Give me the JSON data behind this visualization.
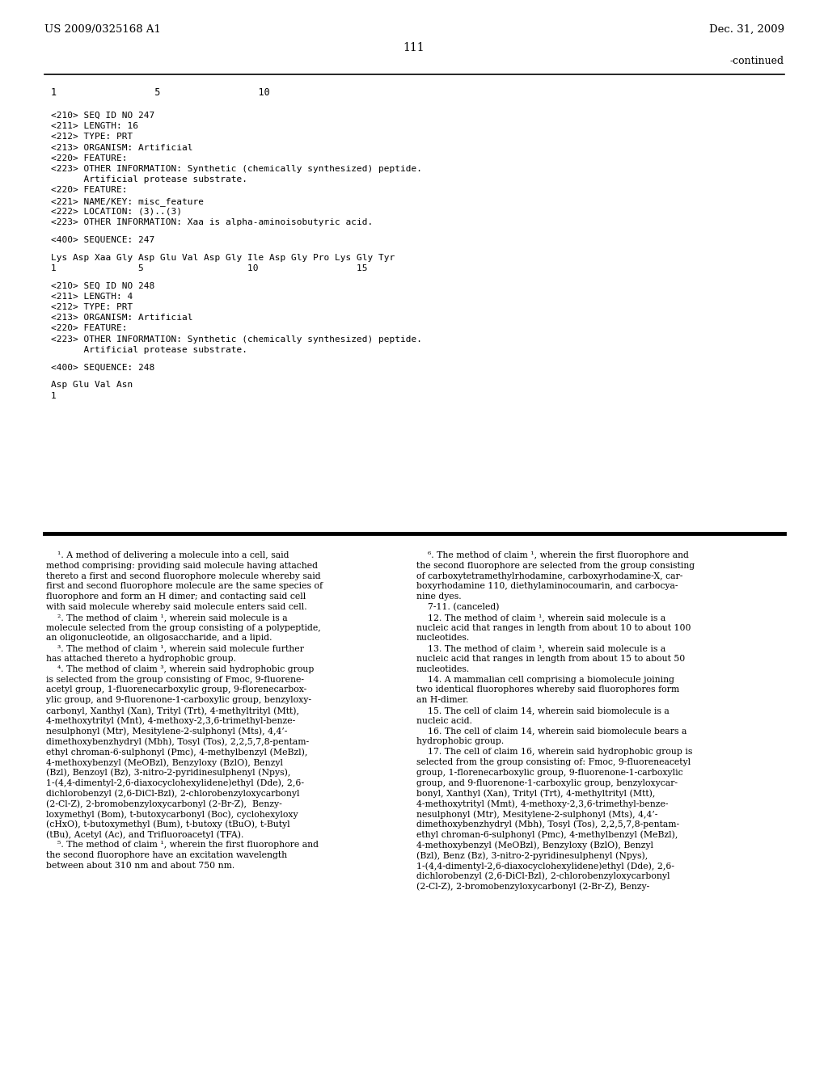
{
  "page_number": "111",
  "header_left": "US 2009/0325168 A1",
  "header_right": "Dec. 31, 2009",
  "continued_label": "-continued",
  "bg_color": "#ffffff",
  "text_color": "#000000",
  "sequence_ruler": "1                 5                 10",
  "seq247_lines": [
    "<210> SEQ ID NO 247",
    "<211> LENGTH: 16",
    "<212> TYPE: PRT",
    "<213> ORGANISM: Artificial",
    "<220> FEATURE:",
    "<223> OTHER INFORMATION: Synthetic (chemically synthesized) peptide.",
    "      Artificial protease substrate.",
    "<220> FEATURE:",
    "<221> NAME/KEY: misc_feature",
    "<222> LOCATION: (3)..(3)",
    "<223> OTHER INFORMATION: Xaa is alpha-aminoisobutyric acid.",
    "",
    "<400> SEQUENCE: 247",
    "",
    "Lys Asp Xaa Gly Asp Glu Val Asp Gly Ile Asp Gly Pro Lys Gly Tyr",
    "1               5                   10                  15"
  ],
  "seq248_lines": [
    "",
    "<210> SEQ ID NO 248",
    "<211> LENGTH: 4",
    "<212> TYPE: PRT",
    "<213> ORGANISM: Artificial",
    "<220> FEATURE:",
    "<223> OTHER INFORMATION: Synthetic (chemically synthesized) peptide.",
    "      Artificial protease substrate.",
    "",
    "<400> SEQUENCE: 248",
    "",
    "Asp Glu Val Asn",
    "1"
  ],
  "claims_left": [
    "    ¹. A method of delivering a molecule into a cell, said",
    "method comprising: providing said molecule having attached",
    "thereto a first and second fluorophore molecule whereby said",
    "first and second fluorophore molecule are the same species of",
    "fluorophore and form an H dimer; and contacting said cell",
    "with said molecule whereby said molecule enters said cell.",
    "    ². The method of claim ¹, wherein said molecule is a",
    "molecule selected from the group consisting of a polypeptide,",
    "an oligonucleotide, an oligosaccharide, and a lipid.",
    "    ³. The method of claim ¹, wherein said molecule further",
    "has attached thereto a hydrophobic group.",
    "    ⁴. The method of claim ³, wherein said hydrophobic group",
    "is selected from the group consisting of Fmoc, 9-fluorene-",
    "acetyl group, 1-fluorenecarboxylic group, 9-florenecarbox-",
    "ylic group, and 9-fluorenone-1-carboxylic group, benzyloxy-",
    "carbonyl, Xanthyl (Xan), Trityl (Trt), 4-methyltrityl (Mtt),",
    "4-methoxytrityl (Mnt), 4-methoxy-2,3,6-trimethyl-benze-",
    "nesulphonyl (Mtr), Mesitylene-2-sulphonyl (Mts), 4,4’-",
    "dimethoxybenzhydryl (Mbh), Tosyl (Tos), 2,2,5,7,8-pentam-",
    "ethyl chroman-6-sulphonyl (Pmc), 4-methylbenzyl (MeBzl),",
    "4-methoxybenzyl (MeOBzl), Benzyloxy (BzlO), Benzyl",
    "(Bzl), Benzoyl (Bz), 3-nitro-2-pyridinesulphenyl (Npys),",
    "1-(4,4-dimentyl-2,6-diaxocyclohexylidene)ethyl (Dde), 2,6-",
    "dichlorobenzyl (2,6-DiCl-Bzl), 2-chlorobenzyloxycarbonyl",
    "(2-Cl-Z), 2-bromobenzyloxycarbonyl (2-Br-Z),  Benzy-",
    "loxymethyl (Bom), t-butoxycarbonyl (Boc), cyclohexyloxy",
    "(cHxO), t-butoxymethyl (Bum), t-butoxy (tBuO), t-Butyl",
    "(tBu), Acetyl (Ac), and Trifluoroacetyl (TFA).",
    "    ⁵. The method of claim ¹, wherein the first fluorophore and",
    "the second fluorophore have an excitation wavelength",
    "between about 310 nm and about 750 nm."
  ],
  "claims_right": [
    "    ⁶. The method of claim ¹, wherein the first fluorophore and",
    "the second fluorophore are selected from the group consisting",
    "of carboxytetramethylrhodamine, carboxyrhodamine-X, car-",
    "boxyrhodamine 110, diethylaminocoumarin, and carbocya-",
    "nine dyes.",
    "    7-11. (canceled)",
    "    12. The method of claim ¹, wherein said molecule is a",
    "nucleic acid that ranges in length from about 10 to about 100",
    "nucleotides.",
    "    13. The method of claim ¹, wherein said molecule is a",
    "nucleic acid that ranges in length from about 15 to about 50",
    "nucleotides.",
    "    14. A mammalian cell comprising a biomolecule joining",
    "two identical fluorophores whereby said fluorophores form",
    "an H-dimer.",
    "    15. The cell of claim 14, wherein said biomolecule is a",
    "nucleic acid.",
    "    16. The cell of claim 14, wherein said biomolecule bears a",
    "hydrophobic group.",
    "    17. The cell of claim 16, wherein said hydrophobic group is",
    "selected from the group consisting of: Fmoc, 9-fluoreneacetyl",
    "group, 1-florenecarboxylic group, 9-fluorenone-1-carboxylic",
    "group, and 9-fluorenone-1-carboxylic group, benzyloxycar-",
    "bonyl, Xanthyl (Xan), Trityl (Trt), 4-methyltrityl (Mtt),",
    "4-methoxytrityl (Mmt), 4-methoxy-2,3,6-trimethyl-benze-",
    "nesulphonyl (Mtr), Mesitylene-2-sulphonyl (Mts), 4,4’-",
    "dimethoxybenzhydryl (Mbh), Tosyl (Tos), 2,2,5,7,8-pentam-",
    "ethyl chroman-6-sulphonyl (Pmc), 4-methylbenzyl (MeBzl),",
    "4-methoxybenzyl (MeOBzl), Benzyloxy (BzlO), Benzyl",
    "(Bzl), Benz (Bz), 3-nitro-2-pyridinesulphenyl (Npys),",
    "1-(4,4-dimentyl-2,6-diaxocyclohexylidene)ethyl (Dde), 2,6-",
    "dichlorobenzyl (2,6-DiCl-Bzl), 2-chlorobenzyloxycarbonyl",
    "(2-Cl-Z), 2-bromobenzyloxycarbonyl (2-Br-Z), Benzy-"
  ]
}
